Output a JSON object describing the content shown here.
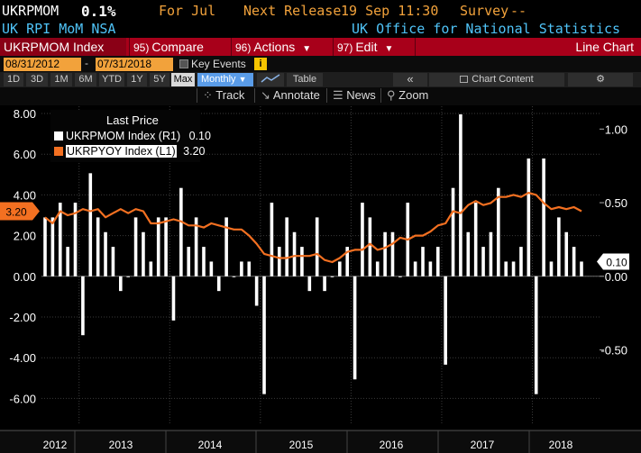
{
  "header": {
    "ticker": "UKRPMOM",
    "last_value": "0.1%",
    "period": "For Jul",
    "next_release_label": "Next Release",
    "next_release": "19 Sep 11:30",
    "survey_label": "Survey",
    "survey": "--",
    "description": "UK RPI MoM NSA",
    "source": "UK Office for National Statistics"
  },
  "toolbar": {
    "security": "UKRPMOM Index",
    "compare_num": "95)",
    "compare": "Compare",
    "actions_num": "96)",
    "actions": "Actions",
    "edit_num": "97)",
    "edit": "Edit",
    "chart_type": "Line Chart"
  },
  "dates": {
    "start": "08/31/2012",
    "separator": "-",
    "end": "07/31/2018",
    "key_events": "Key Events",
    "info": "i"
  },
  "periods": {
    "buttons": [
      "1D",
      "3D",
      "1M",
      "6M",
      "YTD",
      "1Y",
      "5Y",
      "Max"
    ],
    "selected": "Max",
    "frequency": "Monthly",
    "table": "Table",
    "collapse": "«",
    "chart_content": "Chart Content",
    "settings": "⚙"
  },
  "tools": {
    "track": "Track",
    "annotate": "Annotate",
    "news": "News",
    "zoom": "Zoom"
  },
  "legend": {
    "title": "Last Price",
    "items": [
      {
        "label": "UKRPMOM Index  (R1)",
        "value": "0.10",
        "color": "#ffffff"
      },
      {
        "label": "UKRPYOY Index  (L1)",
        "value": "3.20",
        "color": "#f37021"
      }
    ]
  },
  "chart_data": {
    "type": "bar",
    "x_axis": {
      "tick_labels": [
        "2012",
        "2013",
        "2014",
        "2015",
        "2016",
        "2017",
        "2018"
      ]
    },
    "left_axis": {
      "ticks": [
        "8.00",
        "6.00",
        "4.00",
        "2.00",
        "0.00",
        "-2.00",
        "-4.00",
        "-6.00"
      ],
      "range": [
        -6.6,
        8.3
      ]
    },
    "right_axis": {
      "ticks": [
        "1.00",
        "0.50",
        "0.00",
        "-0.50"
      ]
    },
    "last_labels": {
      "left": "3.20",
      "right": "0.10"
    },
    "months": [
      "2012-08",
      "2012-09",
      "2012-10",
      "2012-11",
      "2012-12",
      "2013-01",
      "2013-02",
      "2013-03",
      "2013-04",
      "2013-05",
      "2013-06",
      "2013-07",
      "2013-08",
      "2013-09",
      "2013-10",
      "2013-11",
      "2013-12",
      "2014-01",
      "2014-02",
      "2014-03",
      "2014-04",
      "2014-05",
      "2014-06",
      "2014-07",
      "2014-08",
      "2014-09",
      "2014-10",
      "2014-11",
      "2014-12",
      "2015-01",
      "2015-02",
      "2015-03",
      "2015-04",
      "2015-05",
      "2015-06",
      "2015-07",
      "2015-08",
      "2015-09",
      "2015-10",
      "2015-11",
      "2015-12",
      "2016-01",
      "2016-02",
      "2016-03",
      "2016-04",
      "2016-05",
      "2016-06",
      "2016-07",
      "2016-08",
      "2016-09",
      "2016-10",
      "2016-11",
      "2016-12",
      "2017-01",
      "2017-02",
      "2017-03",
      "2017-04",
      "2017-05",
      "2017-06",
      "2017-07",
      "2017-08",
      "2017-09",
      "2017-10",
      "2017-11",
      "2017-12",
      "2018-01",
      "2018-02",
      "2018-03",
      "2018-04",
      "2018-05",
      "2018-06",
      "2018-07"
    ],
    "series": [
      {
        "name": "UKRPMOM Index",
        "axis": "right",
        "type": "bar",
        "color": "#ffffff",
        "values": [
          0.4,
          0.4,
          0.5,
          0.2,
          0.5,
          -0.4,
          0.7,
          0.4,
          0.3,
          0.2,
          -0.1,
          0.0,
          0.4,
          0.3,
          0.1,
          0.4,
          0.4,
          -0.3,
          0.6,
          0.2,
          0.4,
          0.2,
          0.1,
          -0.1,
          0.4,
          0.0,
          0.1,
          0.1,
          -0.2,
          -0.8,
          0.5,
          0.2,
          0.4,
          0.3,
          0.2,
          -0.1,
          0.4,
          -0.1,
          0.0,
          0.1,
          0.2,
          -0.7,
          0.5,
          0.4,
          0.1,
          0.3,
          0.3,
          0.0,
          0.5,
          0.1,
          0.2,
          0.1,
          0.2,
          -0.6,
          0.6,
          1.1,
          0.3,
          0.5,
          0.2,
          0.3,
          0.6,
          0.1,
          0.1,
          0.2,
          0.8,
          -0.8,
          0.8,
          0.1,
          0.4,
          0.3,
          0.2,
          0.1
        ]
      },
      {
        "name": "UKRPYOY Index",
        "axis": "left",
        "type": "line",
        "color": "#f37021",
        "values": [
          2.9,
          2.6,
          3.2,
          3.0,
          3.1,
          3.3,
          3.2,
          3.3,
          2.9,
          3.1,
          3.3,
          3.1,
          3.3,
          3.2,
          2.6,
          2.6,
          2.7,
          2.8,
          2.7,
          2.5,
          2.5,
          2.4,
          2.6,
          2.5,
          2.4,
          2.3,
          2.3,
          2.0,
          1.6,
          1.1,
          1.0,
          0.9,
          0.9,
          1.0,
          1.0,
          1.0,
          1.1,
          0.8,
          0.7,
          0.9,
          1.2,
          1.3,
          1.3,
          1.6,
          1.3,
          1.4,
          1.6,
          1.9,
          1.8,
          2.0,
          2.0,
          2.2,
          2.5,
          2.6,
          3.2,
          3.1,
          3.5,
          3.7,
          3.5,
          3.6,
          3.9,
          3.9,
          4.0,
          3.9,
          4.1,
          4.0,
          3.6,
          3.3,
          3.4,
          3.3,
          3.4,
          3.2
        ]
      }
    ]
  }
}
